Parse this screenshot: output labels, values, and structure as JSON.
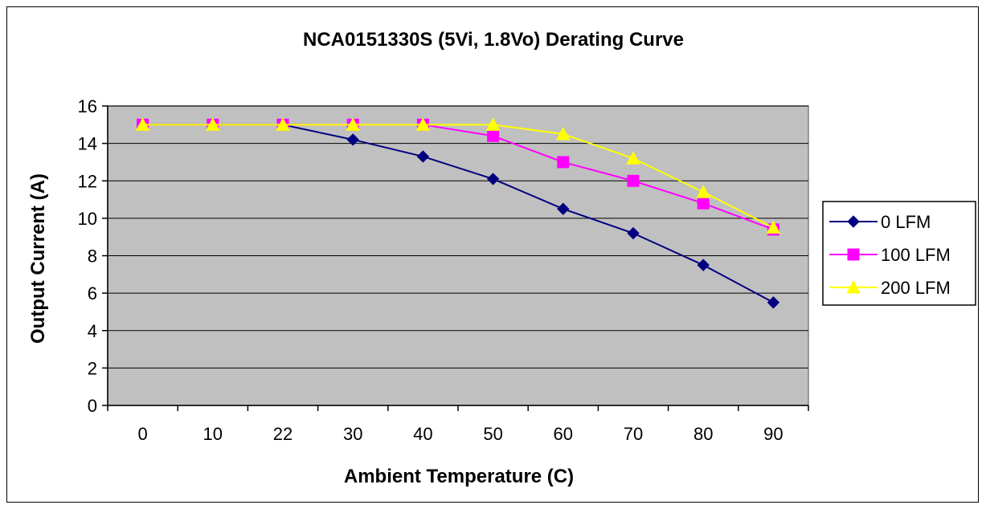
{
  "chart_data": {
    "type": "line",
    "title": "NCA0151330S (5Vi, 1.8Vo) Derating Curve",
    "xlabel": "Ambient Temperature (C)",
    "ylabel": "Output Current (A)",
    "categories": [
      "0",
      "10",
      "22",
      "30",
      "40",
      "50",
      "60",
      "70",
      "80",
      "90"
    ],
    "ylim": [
      0,
      16
    ],
    "yticks": [
      0,
      2,
      4,
      6,
      8,
      10,
      12,
      14,
      16
    ],
    "grid": true,
    "legend_position": "right",
    "plot_background": "#c0c0c0",
    "series": [
      {
        "name": "0 LFM",
        "color": "#000080",
        "marker": "diamond",
        "values": [
          15,
          15,
          15,
          14.2,
          13.3,
          12.1,
          10.5,
          9.2,
          7.5,
          5.5
        ]
      },
      {
        "name": "100 LFM",
        "color": "#ff00ff",
        "marker": "square",
        "values": [
          15,
          15,
          15,
          15,
          15,
          14.4,
          13,
          12,
          10.8,
          9.4
        ]
      },
      {
        "name": "200 LFM",
        "color": "#ffff00",
        "marker": "triangle",
        "values": [
          15,
          15,
          15,
          15,
          15,
          15,
          14.5,
          13.2,
          11.4,
          9.5
        ]
      }
    ]
  }
}
